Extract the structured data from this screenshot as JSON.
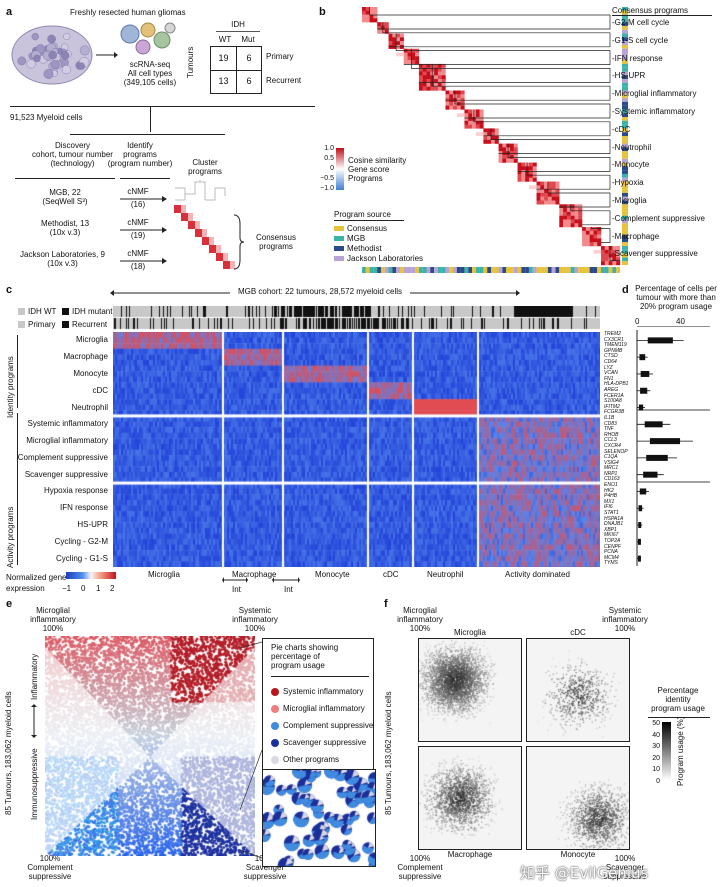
{
  "panel_labels": {
    "a": "a",
    "b": "b",
    "c": "c",
    "d": "d",
    "e": "e",
    "f": "f"
  },
  "panel_a": {
    "freshly": "Freshly resected human gliomas",
    "scrna_line1": "scRNA-seq",
    "scrna_line2": "All cell types",
    "scrna_line3": "(349,105 cells)",
    "idh": "IDH",
    "wt": "WT",
    "mut": "Mut",
    "tumours": "Tumours",
    "primary": "Primary",
    "recurrent": "Recurrent",
    "table": [
      [
        "19",
        "6"
      ],
      [
        "13",
        "6"
      ]
    ],
    "myeloid": "91,523 Myeloid cells",
    "col1": [
      "Discovery",
      "cohort, tumour number",
      "(technology)"
    ],
    "col2": [
      "Identify",
      "programs",
      "(program number)"
    ],
    "col3": [
      "Cluster",
      "programs"
    ],
    "cohorts": [
      {
        "name": "MGB, 22",
        "tech": "(SeqWell S³)",
        "method": "cNMF",
        "num": "(16)"
      },
      {
        "name": "Methodist, 13",
        "tech": "(10x v.3)",
        "method": "cNMF",
        "num": "(19)"
      },
      {
        "name": "Jackson Laboratories, 9",
        "tech": "(10x v.3)",
        "method": "cNMF",
        "num": "(18)"
      }
    ],
    "consensus": [
      "Consensus",
      "programs"
    ]
  },
  "panel_b": {
    "header": "Consensus programs",
    "programs": [
      "G2-M cell cycle",
      "G1-S cell cycle",
      "IFN response",
      "HS-UPR",
      "Microglial inflammatory",
      "Systemic inflammatory",
      "cDC",
      "Neutrophil",
      "Monocyte",
      "Hypoxia",
      "Microglia",
      "Complement suppressive",
      "Macrophage",
      "Scavenger suppressive"
    ],
    "colorbar_ticks": [
      "1.0",
      "0.5",
      "0",
      "−0.5",
      "−1.0"
    ],
    "colorbar_labels": [
      "Cosine similarity",
      "Gene score",
      "Programs"
    ],
    "source_title": "Program source",
    "sources": [
      {
        "name": "Consensus",
        "color": "#e8c33a"
      },
      {
        "name": "MGB",
        "color": "#3bb3a8"
      },
      {
        "name": "Methodist",
        "color": "#2a4a8a"
      },
      {
        "name": "Jackson Laboratories",
        "color": "#b7a3d6"
      }
    ]
  },
  "panel_c": {
    "cohort": "MGB cohort: 22 tumours, 28,572 myeloid cells",
    "idh_wt": "IDH WT",
    "idh_mut": "IDH mutant",
    "primary": "Primary",
    "recurrent": "Recurrent",
    "identity_label": "Identity programs",
    "activity_label": "Activity programs",
    "rows": [
      {
        "name": "Microglia",
        "genes": [
          "TREM2",
          "CX3CR1",
          "TMEM119"
        ]
      },
      {
        "name": "Macrophage",
        "genes": [
          "GPNMB",
          "CTSD",
          "CD64"
        ]
      },
      {
        "name": "Monocyte",
        "genes": [
          "LYZ",
          "VCAN",
          "FN1"
        ]
      },
      {
        "name": "cDC",
        "genes": [
          "HLA-DPB1",
          "AREG",
          "FCER1A"
        ]
      },
      {
        "name": "Neutrophil",
        "genes": [
          "S100A8",
          "IFITM2",
          "FCGR3B"
        ]
      },
      {
        "name": "Systemic inflammatory",
        "genes": [
          "IL1B",
          "CD83",
          "TNF"
        ]
      },
      {
        "name": "Microglial inflammatory",
        "genes": [
          "RHOB",
          "CCL3",
          "CXCR4"
        ]
      },
      {
        "name": "Complement suppressive",
        "genes": [
          "SELENOP",
          "C1QA",
          "VSIG4"
        ]
      },
      {
        "name": "Scavenger suppressive",
        "genes": [
          "MRC1",
          "NRP1",
          "CD163"
        ]
      },
      {
        "name": "Hypoxia response",
        "genes": [
          "ENO1",
          "HK2",
          "P4HB"
        ]
      },
      {
        "name": "IFN response",
        "genes": [
          "MX1",
          "IFI6",
          "STAT1"
        ]
      },
      {
        "name": "HS-UPR",
        "genes": [
          "HSPA1A",
          "DNAJB1",
          "XBP1"
        ]
      },
      {
        "name": "Cycling - G2-M",
        "genes": [
          "MKI67",
          "TOP2A",
          "CENPF"
        ]
      },
      {
        "name": "Cycling - G1-S",
        "genes": [
          "PCNA",
          "MCM4",
          "TYMS"
        ]
      }
    ],
    "bottom_groups": [
      "Microglia",
      "Macrophage",
      "Monocyte",
      "cDC",
      "Neutrophil",
      "Activity dominated"
    ],
    "int_label": "Int",
    "norm_label1": "Normalized gene",
    "norm_label2": "expression",
    "norm_ticks": [
      "−1",
      "0",
      "1",
      "2"
    ]
  },
  "panel_d": {
    "title": [
      "Percentage of cells per",
      "tumour with more than",
      "20% program usage"
    ],
    "ticks": [
      "0",
      "40"
    ],
    "values": [
      35,
      8,
      12,
      10,
      6,
      25,
      42,
      30,
      20,
      9,
      5,
      4,
      3,
      3
    ]
  },
  "panel_e": {
    "top_left": [
      "Microglial",
      "inflammatory",
      "100%"
    ],
    "top_right": [
      "Systemic",
      "inflammatory",
      "100%"
    ],
    "bottom_left": [
      "100%",
      "Complement",
      "suppressive"
    ],
    "bottom_right": [
      "100%",
      "Scavenger",
      "suppressive"
    ],
    "y_axis": "85 Tumours, 183,062 myeloid cells",
    "inflammatory": "Inflammatory",
    "immunosuppressive": "Immunosuppressive",
    "legend_title": [
      "Pie charts showing",
      "percentage of",
      "program usage"
    ],
    "legend": [
      {
        "name": "Systemic inflammatory",
        "color": "#b8161f"
      },
      {
        "name": "Microglial inflammatory",
        "color": "#ef7e7e"
      },
      {
        "name": "Complement suppressive",
        "color": "#3f8be0"
      },
      {
        "name": "Scavenger suppressive",
        "color": "#1b2f9a"
      },
      {
        "name": "Other programs",
        "color": "#d7d7e6"
      }
    ]
  },
  "panel_f": {
    "top_left": [
      "Microglial",
      "inflammatory",
      "100%"
    ],
    "top_right": [
      "Systemic",
      "inflammatory",
      "100%"
    ],
    "bottom_left": [
      "100%",
      "Complement",
      "suppressive"
    ],
    "bottom_right": [
      "100%",
      "Scavenger",
      "suppressive"
    ],
    "y_axis": "85 Tumours, 183,062 myeloid cells",
    "subplots": [
      "Microglia",
      "cDC",
      "Macrophage",
      "Monocyte"
    ],
    "cb_title": [
      "Percentage",
      "identity",
      "program usage"
    ],
    "cb_ticks": [
      "50",
      "40",
      "30",
      "20",
      "10",
      "0"
    ],
    "cb_axis": "Program usage (%)"
  },
  "watermark": "知乎 @EvilGenius"
}
